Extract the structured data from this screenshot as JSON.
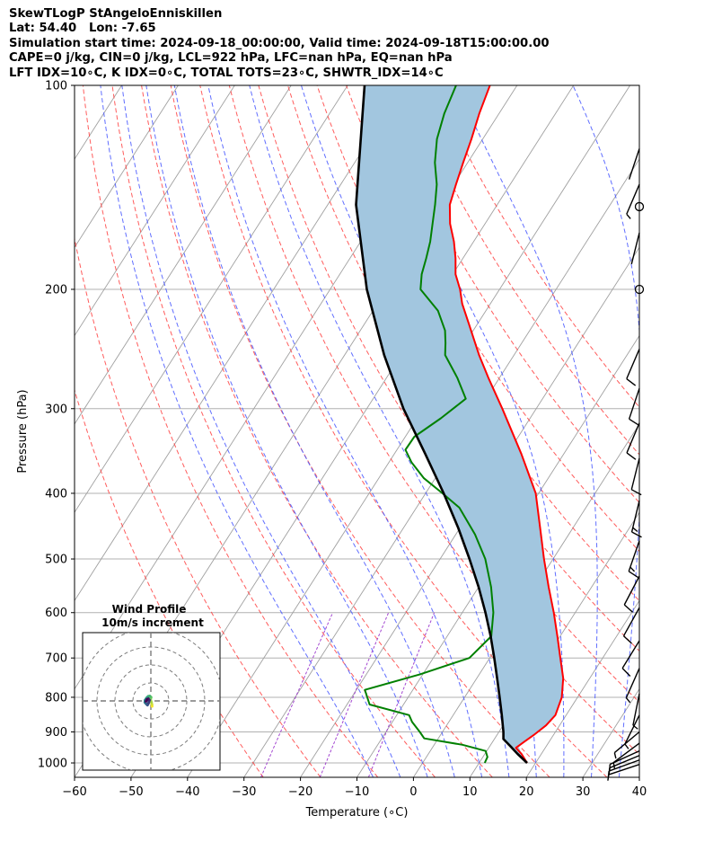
{
  "header": {
    "line1": "SkewTLogP StAngeloEnniskillen",
    "line2": "Lat: 54.40   Lon: -7.65",
    "line3": "Simulation start time: 2024-09-18_00:00:00, Valid time: 2024-09-18T15:00:00.00",
    "line4": "CAPE=0 j/kg, CIN=0 j/kg, LCL=922 hPa, LFC=nan hPa, EQ=nan hPa",
    "line5": "LFT IDX=10∘C, K IDX=0∘C, TOTAL TOTS=23∘C, SHWTR_IDX=14∘C"
  },
  "colors": {
    "temperature": "#ff0000",
    "dewpoint": "#008000",
    "parcel": "#000000",
    "cape_fill": "#a2c6df",
    "dry_adiabat": "#ff4040",
    "moist_adiabat": "#4455ff",
    "mixing_ratio": "#9933cc",
    "isotherm": "#a0a0a0"
  },
  "chart_data": {
    "type": "line",
    "xlabel": "Temperature (∘C)",
    "ylabel": "Pressure (hPa)",
    "xlim": [
      -60,
      40
    ],
    "ylim": [
      1050,
      100
    ],
    "y_scale": "log",
    "x_ticks": [
      -60,
      -50,
      -40,
      -30,
      -20,
      -10,
      0,
      10,
      20,
      30,
      40
    ],
    "x_tick_labels": [
      "−60",
      "−50",
      "−40",
      "−30",
      "−20",
      "−10",
      "0",
      "10",
      "20",
      "30",
      "40"
    ],
    "y_ticks": [
      1000,
      900,
      800,
      700,
      600,
      500,
      400,
      300,
      200,
      100
    ],
    "grid": true,
    "series": [
      {
        "id": "temperature",
        "values": [
          [
            1000,
            18.5
          ],
          [
            970,
            16.5
          ],
          [
            950,
            14.8
          ],
          [
            930,
            15.6
          ],
          [
            910,
            16.5
          ],
          [
            880,
            17.6
          ],
          [
            850,
            18.1
          ],
          [
            800,
            17.2
          ],
          [
            750,
            15.3
          ],
          [
            700,
            12.5
          ],
          [
            650,
            9.5
          ],
          [
            600,
            6.2
          ],
          [
            550,
            2.4
          ],
          [
            500,
            -1.6
          ],
          [
            450,
            -5.8
          ],
          [
            400,
            -10.5
          ],
          [
            350,
            -17.5
          ],
          [
            300,
            -26.0
          ],
          [
            270,
            -32.0
          ],
          [
            250,
            -36.2
          ],
          [
            225,
            -41.5
          ],
          [
            210,
            -45.0
          ],
          [
            200,
            -47.0
          ],
          [
            190,
            -49.5
          ],
          [
            180,
            -51.3
          ],
          [
            170,
            -53.5
          ],
          [
            160,
            -56.2
          ],
          [
            150,
            -58.4
          ],
          [
            140,
            -59.6
          ],
          [
            130,
            -60.8
          ],
          [
            120,
            -62.0
          ],
          [
            110,
            -63.5
          ],
          [
            100,
            -64.8
          ]
        ]
      },
      {
        "id": "dewpoint",
        "values": [
          [
            1000,
            11.0
          ],
          [
            980,
            10.8
          ],
          [
            960,
            9.8
          ],
          [
            940,
            5.0
          ],
          [
            920,
            -2.5
          ],
          [
            900,
            -4.0
          ],
          [
            870,
            -6.5
          ],
          [
            850,
            -7.8
          ],
          [
            820,
            -16.0
          ],
          [
            780,
            -18.5
          ],
          [
            740,
            -10.5
          ],
          [
            700,
            -3.6
          ],
          [
            650,
            -2.2
          ],
          [
            600,
            -4.5
          ],
          [
            550,
            -7.8
          ],
          [
            500,
            -12.0
          ],
          [
            460,
            -16.6
          ],
          [
            420,
            -22.4
          ],
          [
            400,
            -27.0
          ],
          [
            380,
            -32.0
          ],
          [
            360,
            -36.0
          ],
          [
            345,
            -38.5
          ],
          [
            330,
            -38.4
          ],
          [
            310,
            -35.8
          ],
          [
            290,
            -33.6
          ],
          [
            270,
            -37.5
          ],
          [
            250,
            -42.2
          ],
          [
            240,
            -43.5
          ],
          [
            230,
            -45.0
          ],
          [
            215,
            -48.5
          ],
          [
            200,
            -54.0
          ],
          [
            190,
            -55.5
          ],
          [
            180,
            -56.5
          ],
          [
            170,
            -57.7
          ],
          [
            160,
            -59.3
          ],
          [
            150,
            -61.0
          ],
          [
            140,
            -63.0
          ],
          [
            130,
            -65.8
          ],
          [
            120,
            -68.1
          ],
          [
            110,
            -69.7
          ],
          [
            100,
            -70.8
          ]
        ]
      },
      {
        "id": "parcel",
        "values": [
          [
            1000,
            18.5
          ],
          [
            970,
            15.8
          ],
          [
            950,
            14.1
          ],
          [
            922,
            11.6
          ],
          [
            900,
            10.8
          ],
          [
            850,
            8.6
          ],
          [
            800,
            6.2
          ],
          [
            750,
            3.6
          ],
          [
            700,
            0.8
          ],
          [
            650,
            -2.3
          ],
          [
            600,
            -5.9
          ],
          [
            550,
            -10.0
          ],
          [
            500,
            -14.8
          ],
          [
            450,
            -20.3
          ],
          [
            400,
            -26.8
          ],
          [
            350,
            -34.5
          ],
          [
            300,
            -43.5
          ],
          [
            250,
            -53.0
          ],
          [
            200,
            -63.5
          ],
          [
            150,
            -75.0
          ],
          [
            100,
            -87.0
          ]
        ]
      }
    ],
    "dry_adiabats_C": [
      -30,
      -20,
      -10,
      0,
      10,
      20,
      30,
      40,
      50,
      60,
      70,
      80,
      90,
      100,
      110
    ],
    "moist_adiabats_C": [
      -10,
      -5,
      0,
      5,
      10,
      15,
      20,
      25,
      30,
      35
    ],
    "mixing_ratio_lines": [
      0.4,
      1,
      2
    ],
    "wind_barbs": [
      {
        "p": 1005,
        "u": 4.5,
        "v": 1.5
      },
      {
        "p": 990,
        "u": 5.5,
        "v": 2.0
      },
      {
        "p": 975,
        "u": 6.0,
        "v": 2.5
      },
      {
        "p": 960,
        "u": 5.5,
        "v": 2.5
      },
      {
        "p": 935,
        "u": 4.0,
        "v": 3.0
      },
      {
        "p": 900,
        "u": 3.0,
        "v": 2.5
      },
      {
        "p": 850,
        "u": 1.5,
        "v": 3.0
      },
      {
        "p": 790,
        "u": 1.0,
        "v": 5.0
      },
      {
        "p": 725,
        "u": 2.0,
        "v": 4.5
      },
      {
        "p": 660,
        "u": 4.0,
        "v": 6.5
      },
      {
        "p": 590,
        "u": 5.0,
        "v": 9.0
      },
      {
        "p": 530,
        "u": 5.5,
        "v": 10.5
      },
      {
        "p": 470,
        "u": 4.5,
        "v": 13.0
      },
      {
        "p": 410,
        "u": 3.5,
        "v": 14.5
      },
      {
        "p": 355,
        "u": 3.0,
        "v": 12.0
      },
      {
        "p": 315,
        "u": 4.0,
        "v": 9.5
      },
      {
        "p": 280,
        "u": 3.5,
        "v": 10.5
      },
      {
        "p": 245,
        "u": 3.0,
        "v": 7.0
      },
      {
        "p": 200,
        "u": 0,
        "v": 0
      },
      {
        "p": 165,
        "u": 0.5,
        "v": 2.0
      },
      {
        "p": 151,
        "u": 0,
        "v": 0
      },
      {
        "p": 140,
        "u": 1.5,
        "v": 3.5
      },
      {
        "p": 124,
        "u": 0.5,
        "v": 1.5
      }
    ],
    "hodograph": {
      "title": "Wind Profile",
      "subtitle": "10m/s increment",
      "ring_speeds": [
        10,
        20,
        30,
        40
      ],
      "points": [
        [
          0.7,
          -3.0
        ],
        [
          0.6,
          -2.0
        ],
        [
          0.3,
          -0.8
        ],
        [
          -0.2,
          0.8
        ],
        [
          0.1,
          2.0
        ],
        [
          -0.6,
          2.7
        ],
        [
          -1.5,
          2.5
        ],
        [
          -2.4,
          1.6
        ],
        [
          -3.2,
          0.4
        ],
        [
          -3.3,
          -0.8
        ],
        [
          -2.6,
          -1.6
        ],
        [
          -1.9,
          -2.3
        ],
        [
          -1.3,
          -1.2
        ],
        [
          -0.8,
          0.4
        ],
        [
          -1.4,
          1.2
        ],
        [
          -2.2,
          0.8
        ],
        [
          -2.7,
          -0.2
        ]
      ]
    }
  }
}
